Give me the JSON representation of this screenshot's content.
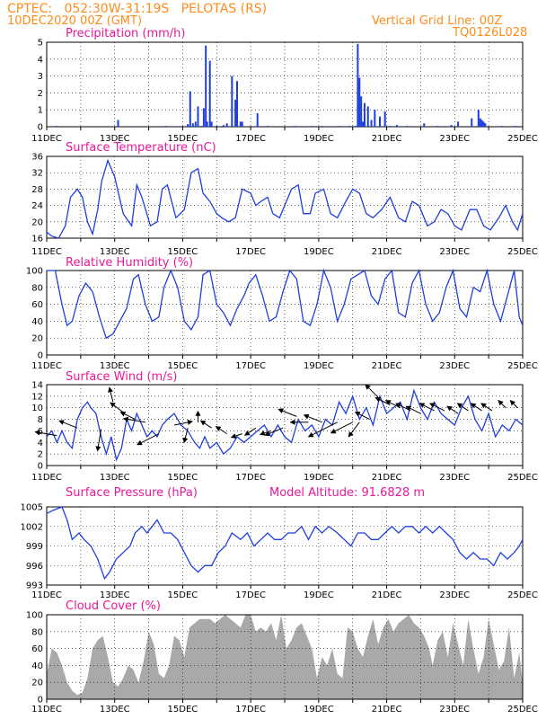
{
  "header": {
    "line1": "CPTEC:   052:30W-31:19S   PELOTAS (RS)",
    "line2": "10DEC2020 00Z (GMT)",
    "vgrid": "Vertical Grid Line: 00Z",
    "code": "TQ0126L028"
  },
  "colors": {
    "header": "#ff8c1a",
    "title": "#e8199a",
    "line": "#1f3fdc",
    "bar": "#1f3fdc",
    "cloud": "#a9a9a9"
  },
  "chart_data": [
    {
      "id": "precip",
      "type": "bar",
      "title": "Precipitation (mm/h)",
      "ylim": [
        0,
        5
      ],
      "yticks": [
        "0",
        "1",
        "2",
        "3",
        "4",
        "5"
      ],
      "x_unit": "days since 10DEC2020 00Z",
      "x": [
        0.3,
        2.1,
        3.5,
        4.0,
        4.15,
        4.22,
        4.3,
        4.38,
        4.45,
        4.55,
        4.62,
        4.68,
        4.72,
        4.8,
        4.85,
        5.0,
        5.2,
        5.3,
        5.45,
        5.55,
        5.6,
        5.7,
        5.75,
        6.2,
        6.5,
        7.3,
        7.8,
        8.1,
        8.6,
        8.9,
        9.1,
        9.15,
        9.2,
        9.25,
        9.3,
        9.35,
        9.45,
        9.55,
        9.65,
        9.8,
        9.95,
        10.1,
        10.3,
        10.6,
        11.1,
        11.5,
        11.9,
        12.1,
        12.5,
        12.7,
        12.75,
        12.8,
        12.85,
        12.9,
        13.4,
        13.8
      ],
      "values": [
        0.05,
        0.4,
        0.05,
        0.05,
        0.15,
        2.1,
        0.2,
        0.3,
        1.2,
        0.05,
        1.1,
        4.8,
        0.3,
        3.9,
        0.3,
        0.05,
        0.1,
        0.2,
        3.0,
        1.6,
        2.7,
        0.3,
        0.3,
        0.8,
        0.05,
        0.05,
        0.05,
        0.05,
        0.05,
        0.05,
        0.05,
        4.9,
        2.9,
        1.8,
        0.3,
        1.4,
        1.2,
        0.4,
        1.0,
        0.6,
        0.9,
        0.05,
        0.1,
        0.05,
        0.2,
        0.05,
        0.1,
        0.3,
        0.5,
        1.0,
        0.5,
        0.4,
        0.3,
        0.2,
        0.05,
        0.05
      ]
    },
    {
      "id": "temp",
      "type": "line",
      "title": "Surface Temperature (nC)",
      "ylim": [
        16,
        36
      ],
      "yticks": [
        "16",
        "20",
        "24",
        "28",
        "32",
        "36"
      ],
      "x": [
        0,
        0.15,
        0.35,
        0.55,
        0.7,
        0.9,
        1.05,
        1.2,
        1.35,
        1.5,
        1.62,
        1.8,
        2.0,
        2.25,
        2.5,
        2.65,
        2.8,
        3.05,
        3.25,
        3.4,
        3.55,
        3.8,
        4.05,
        4.25,
        4.45,
        4.6,
        4.8,
        5.0,
        5.15,
        5.35,
        5.55,
        5.75,
        6.0,
        6.15,
        6.3,
        6.5,
        6.65,
        6.85,
        7.0,
        7.2,
        7.4,
        7.55,
        7.75,
        7.9,
        8.15,
        8.35,
        8.55,
        8.8,
        9.0,
        9.2,
        9.4,
        9.6,
        9.85,
        10.1,
        10.35,
        10.55,
        10.75,
        10.95,
        11.2,
        11.4,
        11.6,
        11.8,
        12.0,
        12.2,
        12.45,
        12.65,
        12.85,
        13.05,
        13.3,
        13.5,
        13.7,
        13.85,
        14.0
      ],
      "values": [
        17.5,
        16.5,
        16,
        19,
        26,
        28,
        26,
        20,
        17,
        23,
        30,
        35,
        31,
        22,
        19,
        29,
        26,
        19,
        20,
        28,
        29,
        21,
        23,
        32,
        33,
        27,
        25,
        22,
        21,
        20,
        21,
        28,
        27,
        24,
        25,
        26,
        22,
        21,
        24,
        28,
        29,
        22,
        22,
        27,
        28,
        22,
        21,
        25,
        28,
        27,
        22,
        21,
        23,
        26,
        21,
        20,
        25,
        24,
        19,
        20,
        23,
        22,
        19,
        18,
        23,
        23,
        19,
        18,
        21,
        24,
        20,
        18,
        22
      ]
    },
    {
      "id": "rh",
      "type": "line",
      "title": "Relative Humidity (%)",
      "ylim": [
        0,
        100
      ],
      "yticks": [
        "0",
        "20",
        "40",
        "60",
        "80",
        "100"
      ],
      "x": [
        0,
        0.25,
        0.45,
        0.6,
        0.75,
        0.95,
        1.15,
        1.35,
        1.55,
        1.75,
        1.95,
        2.15,
        2.35,
        2.55,
        2.7,
        2.9,
        3.1,
        3.3,
        3.45,
        3.65,
        3.85,
        4.05,
        4.25,
        4.45,
        4.6,
        4.8,
        5.0,
        5.2,
        5.4,
        5.6,
        5.8,
        5.95,
        6.15,
        6.35,
        6.55,
        6.75,
        6.95,
        7.15,
        7.35,
        7.55,
        7.75,
        7.95,
        8.15,
        8.35,
        8.55,
        8.75,
        8.95,
        9.15,
        9.35,
        9.55,
        9.75,
        9.95,
        10.15,
        10.35,
        10.55,
        10.75,
        10.95,
        11.15,
        11.35,
        11.55,
        11.75,
        11.95,
        12.15,
        12.35,
        12.55,
        12.75,
        12.95,
        13.15,
        13.35,
        13.55,
        13.75,
        13.9,
        14.0
      ],
      "values": [
        100,
        100,
        60,
        35,
        40,
        70,
        85,
        75,
        45,
        20,
        25,
        40,
        55,
        90,
        95,
        60,
        40,
        45,
        80,
        100,
        80,
        40,
        30,
        45,
        95,
        100,
        60,
        50,
        35,
        55,
        70,
        85,
        95,
        70,
        40,
        45,
        75,
        100,
        90,
        40,
        35,
        60,
        100,
        80,
        40,
        60,
        90,
        95,
        100,
        70,
        60,
        90,
        100,
        50,
        45,
        85,
        100,
        60,
        40,
        50,
        80,
        100,
        55,
        45,
        80,
        75,
        100,
        60,
        40,
        70,
        100,
        45,
        35
      ]
    },
    {
      "id": "wind",
      "type": "line",
      "title": "Surface Wind (m/s)",
      "ylim": [
        0,
        14
      ],
      "yticks": [
        "0",
        "2",
        "4",
        "6",
        "8",
        "10",
        "12",
        "14"
      ],
      "x": [
        0,
        0.15,
        0.3,
        0.45,
        0.6,
        0.75,
        0.9,
        1.05,
        1.2,
        1.3,
        1.45,
        1.6,
        1.75,
        1.9,
        2.05,
        2.2,
        2.35,
        2.5,
        2.65,
        2.8,
        2.95,
        3.1,
        3.25,
        3.4,
        3.55,
        3.75,
        3.95,
        4.15,
        4.35,
        4.5,
        4.65,
        4.8,
        5.0,
        5.2,
        5.4,
        5.6,
        5.8,
        6.0,
        6.2,
        6.4,
        6.6,
        6.8,
        7.0,
        7.2,
        7.4,
        7.6,
        7.8,
        8.0,
        8.2,
        8.4,
        8.6,
        8.8,
        9.0,
        9.2,
        9.4,
        9.6,
        9.8,
        10.0,
        10.2,
        10.4,
        10.6,
        10.8,
        11.0,
        11.2,
        11.4,
        11.6,
        11.8,
        12.0,
        12.2,
        12.4,
        12.6,
        12.8,
        13.0,
        13.2,
        13.4,
        13.6,
        13.8,
        14.0
      ],
      "values": [
        5,
        6,
        4,
        6,
        4,
        3,
        8,
        10,
        11,
        10,
        9,
        5,
        2,
        5,
        1,
        3,
        8,
        6,
        9,
        7,
        5,
        6,
        5,
        7,
        8,
        9,
        7,
        6,
        4,
        3,
        5,
        3,
        4,
        2,
        3,
        5,
        4,
        5,
        6,
        7,
        5,
        7,
        5,
        4,
        8,
        6,
        7,
        5,
        8,
        7,
        11,
        9,
        12,
        8,
        10,
        7,
        12,
        9,
        10,
        11,
        8,
        13,
        10,
        8,
        11,
        9,
        8,
        7,
        10,
        12,
        8,
        6,
        9,
        5,
        7,
        6,
        8,
        7
      ]
    },
    {
      "id": "wind_arrows",
      "type": "quiver",
      "x": [
        0.3,
        0.9,
        1.6,
        1.95,
        2.3,
        2.6,
        2.9,
        3.3,
        3.75,
        4.15,
        4.45,
        4.85,
        5.3,
        5.75,
        6.15,
        6.6,
        6.95,
        7.35,
        7.7,
        8.1,
        8.55,
        9.0,
        9.2,
        9.5,
        9.8,
        10.1,
        10.4,
        10.7,
        11.0,
        11.4,
        11.7,
        12.1,
        12.4,
        12.8,
        13.1,
        13.5,
        13.85
      ],
      "values": [
        5.2,
        6.5,
        6.3,
        11.0,
        9.0,
        8.0,
        7.5,
        5.5,
        7.0,
        6.5,
        7.5,
        6.5,
        5.5,
        5.5,
        6.5,
        6.0,
        6.5,
        8.5,
        7.5,
        7.5,
        7.5,
        7.5,
        7.5,
        8.0,
        11.5,
        10.5,
        10.0,
        9.5,
        9.0,
        9.5,
        9.5,
        9.0,
        9.5,
        9.5,
        9.5,
        10.0,
        10.0
      ],
      "u": [
        -6,
        -5,
        -1,
        -1,
        -4,
        -4,
        -6,
        -6,
        5,
        -1,
        0,
        -3,
        -3,
        -3,
        -3,
        -3,
        -5,
        -5,
        -5,
        -5,
        -8,
        -6,
        -3,
        -4,
        -4,
        -4,
        -4,
        -4,
        -4,
        -4,
        -4,
        -3,
        -3,
        -3,
        -3,
        -2,
        -2
      ],
      "v": [
        1,
        2,
        -6,
        4,
        3,
        2,
        1,
        -3,
        1,
        -4,
        3,
        2,
        2,
        -1,
        -2,
        -1,
        -2,
        2,
        0,
        2,
        -4,
        -3,
        -4,
        2,
        4,
        2,
        2,
        2,
        2,
        2,
        2,
        2,
        2,
        2,
        2,
        2,
        2
      ]
    },
    {
      "id": "pres",
      "type": "line",
      "title": "Surface Pressure (hPa)",
      "subtitle": "Model Altitude: 91.6828 m",
      "ylim": [
        993,
        1005
      ],
      "yticks": [
        "993",
        "996",
        "999",
        "1002",
        "1005"
      ],
      "x": [
        0,
        0.2,
        0.45,
        0.6,
        0.75,
        0.95,
        1.1,
        1.3,
        1.5,
        1.7,
        1.85,
        2.05,
        2.25,
        2.45,
        2.6,
        2.8,
        2.95,
        3.1,
        3.25,
        3.45,
        3.65,
        3.85,
        4.05,
        4.25,
        4.45,
        4.65,
        4.85,
        5.05,
        5.25,
        5.45,
        5.7,
        5.9,
        6.1,
        6.3,
        6.5,
        6.7,
        6.9,
        7.1,
        7.3,
        7.5,
        7.7,
        7.9,
        8.1,
        8.3,
        8.55,
        8.75,
        8.95,
        9.15,
        9.35,
        9.55,
        9.75,
        9.95,
        10.15,
        10.35,
        10.55,
        10.75,
        10.95,
        11.15,
        11.35,
        11.55,
        11.75,
        11.95,
        12.15,
        12.35,
        12.55,
        12.75,
        12.95,
        13.15,
        13.35,
        13.55,
        13.75,
        13.9,
        14.0
      ],
      "values": [
        1004,
        1004.5,
        1005,
        1003,
        1000,
        1001,
        1000,
        999,
        997,
        994,
        995,
        997,
        998,
        999,
        1001,
        1002,
        1001,
        1002,
        1003,
        1001,
        1001,
        1000,
        998,
        996,
        995,
        996,
        996,
        998,
        999,
        1001,
        1000,
        1001,
        999,
        1000,
        1001,
        1000,
        1000,
        1001,
        1001,
        1002,
        1000,
        1002,
        1001,
        1002,
        1001,
        1000,
        999,
        1001,
        1001,
        1000,
        1000,
        1001,
        1002,
        1001,
        1002,
        1002,
        1001,
        1002,
        1001,
        1002,
        1001,
        1000,
        998,
        997,
        998,
        997,
        997,
        996,
        998,
        997,
        998,
        999,
        1000
      ]
    },
    {
      "id": "cloud",
      "type": "area",
      "title": "Cloud Cover (%)",
      "ylim": [
        0,
        100
      ],
      "yticks": [
        "0",
        "20",
        "40",
        "60",
        "80",
        "100"
      ],
      "x": [
        0,
        0.15,
        0.3,
        0.45,
        0.6,
        0.75,
        0.9,
        1.05,
        1.2,
        1.35,
        1.5,
        1.65,
        1.8,
        1.95,
        2.1,
        2.25,
        2.4,
        2.55,
        2.7,
        2.85,
        3.0,
        3.15,
        3.3,
        3.45,
        3.6,
        3.75,
        3.9,
        4.05,
        4.2,
        4.35,
        4.5,
        4.65,
        4.8,
        4.95,
        5.1,
        5.25,
        5.4,
        5.55,
        5.7,
        5.85,
        6.0,
        6.15,
        6.3,
        6.45,
        6.6,
        6.75,
        6.9,
        7.05,
        7.2,
        7.35,
        7.5,
        7.65,
        7.8,
        7.95,
        8.1,
        8.25,
        8.4,
        8.55,
        8.7,
        8.85,
        9.0,
        9.15,
        9.3,
        9.45,
        9.6,
        9.75,
        9.9,
        10.05,
        10.2,
        10.35,
        10.5,
        10.65,
        10.8,
        10.95,
        11.1,
        11.25,
        11.35,
        11.5,
        11.65,
        11.8,
        11.95,
        12.1,
        12.25,
        12.4,
        12.55,
        12.7,
        12.85,
        13.0,
        13.15,
        13.3,
        13.45,
        13.6,
        13.75,
        13.9,
        14.0
      ],
      "values": [
        30,
        60,
        55,
        40,
        20,
        10,
        5,
        8,
        25,
        60,
        70,
        75,
        50,
        20,
        15,
        25,
        40,
        35,
        20,
        45,
        80,
        65,
        30,
        25,
        40,
        75,
        70,
        50,
        85,
        90,
        95,
        95,
        95,
        90,
        95,
        100,
        95,
        90,
        85,
        100,
        100,
        80,
        85,
        80,
        90,
        70,
        100,
        60,
        70,
        85,
        90,
        75,
        60,
        25,
        50,
        40,
        60,
        30,
        25,
        85,
        80,
        60,
        50,
        75,
        95,
        65,
        85,
        95,
        80,
        90,
        95,
        100,
        90,
        85,
        75,
        60,
        40,
        70,
        80,
        50,
        90,
        65,
        40,
        95,
        60,
        30,
        50,
        95,
        65,
        35,
        45,
        85,
        25,
        55,
        20
      ]
    }
  ],
  "x_axis": {
    "ticks": [
      "11DEC",
      "13DEC",
      "15DEC",
      "17DEC",
      "19DEC",
      "21DEC",
      "23DEC",
      "25DEC"
    ],
    "tick_days": [
      1,
      3,
      5,
      7,
      9,
      11,
      13,
      15
    ]
  }
}
